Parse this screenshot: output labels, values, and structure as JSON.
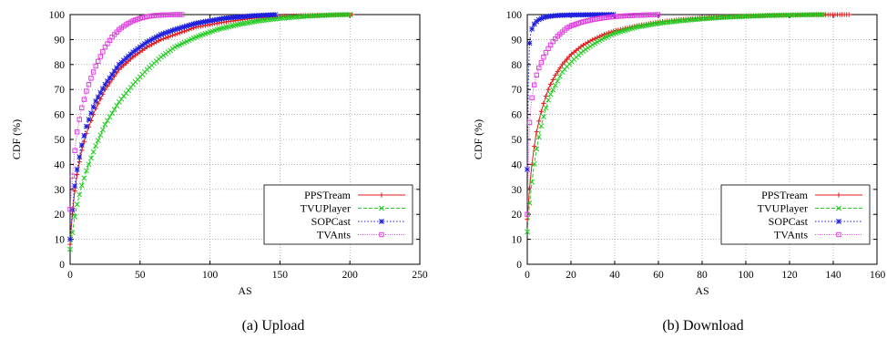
{
  "colors": {
    "PPSTream": "#e41a1c",
    "TVUPlayer": "#22cc22",
    "SOPCast": "#1f1fdd",
    "TVAnts": "#e040e0"
  },
  "chart_data": [
    {
      "type": "line",
      "caption": "(a) Upload",
      "xlabel": "AS",
      "ylabel": "CDF (%)",
      "xlim": [
        0,
        250
      ],
      "ylim": [
        0,
        100
      ],
      "xticks": [
        0,
        50,
        100,
        150,
        200,
        250
      ],
      "yticks": [
        0,
        10,
        20,
        30,
        40,
        50,
        60,
        70,
        80,
        90,
        100
      ],
      "grid": true,
      "legend_position": "bottom-right",
      "series": [
        {
          "name": "PPSTream",
          "marker": "plus",
          "x": [
            0,
            1,
            2,
            3,
            5,
            8,
            12,
            18,
            25,
            35,
            45,
            55,
            65,
            75,
            90,
            110,
            130,
            150,
            170,
            190,
            203
          ],
          "y": [
            8,
            16,
            22,
            28,
            36,
            45,
            53,
            62,
            70,
            78,
            83,
            87,
            90,
            92,
            95,
            97,
            98.5,
            99.3,
            99.7,
            99.9,
            100
          ]
        },
        {
          "name": "TVUPlayer",
          "marker": "x",
          "x": [
            0,
            1,
            2,
            3,
            5,
            8,
            12,
            18,
            25,
            35,
            45,
            55,
            65,
            75,
            90,
            105,
            120,
            135,
            150,
            170,
            190,
            200
          ],
          "y": [
            6,
            10,
            14,
            18,
            24,
            31,
            38,
            47,
            56,
            65,
            72,
            78,
            83,
            87,
            91,
            94,
            96,
            97.5,
            98.5,
            99.4,
            99.9,
            100
          ]
        },
        {
          "name": "SOPCast",
          "marker": "star",
          "x": [
            0,
            1,
            2,
            3,
            5,
            8,
            12,
            18,
            25,
            35,
            45,
            55,
            65,
            75,
            90,
            110,
            130,
            147
          ],
          "y": [
            10,
            17,
            24,
            30,
            38,
            47,
            56,
            65,
            72,
            80,
            85,
            89,
            92,
            94,
            96.5,
            98.5,
            99.5,
            100
          ]
        },
        {
          "name": "TVAnts",
          "marker": "square",
          "x": [
            0,
            1,
            2,
            3,
            5,
            8,
            12,
            18,
            25,
            30,
            35,
            40,
            45,
            50,
            55,
            60,
            65,
            70,
            75,
            80
          ],
          "y": [
            22,
            30,
            38,
            44,
            53,
            62,
            70,
            79,
            87,
            91,
            94,
            96,
            97.5,
            98.5,
            99.2,
            99.6,
            99.8,
            99.9,
            100,
            100
          ]
        }
      ]
    },
    {
      "type": "line",
      "caption": "(b) Download",
      "xlabel": "AS",
      "ylabel": "CDF (%)",
      "xlim": [
        0,
        160
      ],
      "ylim": [
        0,
        100
      ],
      "xticks": [
        0,
        20,
        40,
        60,
        80,
        100,
        120,
        140,
        160
      ],
      "yticks": [
        0,
        10,
        20,
        30,
        40,
        50,
        60,
        70,
        80,
        90,
        100
      ],
      "grid": true,
      "legend_position": "bottom-right",
      "series": [
        {
          "name": "PPSTream",
          "marker": "plus",
          "x": [
            0,
            1,
            2,
            3,
            4,
            6,
            8,
            10,
            13,
            16,
            20,
            25,
            30,
            35,
            40,
            50,
            60,
            70,
            80,
            90,
            100,
            110,
            120,
            135,
            148
          ],
          "y": [
            18,
            30,
            39,
            46,
            52,
            60,
            66,
            71,
            76,
            80,
            84,
            87.5,
            90,
            92,
            93.5,
            95.5,
            97,
            98,
            98.7,
            99.2,
            99.5,
            99.7,
            99.85,
            99.95,
            100
          ]
        },
        {
          "name": "TVUPlayer",
          "marker": "x",
          "x": [
            0,
            1,
            2,
            3,
            4,
            6,
            8,
            10,
            13,
            16,
            20,
            25,
            30,
            35,
            40,
            50,
            60,
            70,
            80,
            90,
            100,
            110,
            120,
            130,
            136
          ],
          "y": [
            13,
            24,
            32,
            39,
            45,
            54,
            61,
            67,
            72,
            77,
            81,
            85,
            88,
            90.5,
            92.5,
            95,
            96.5,
            97.5,
            98.3,
            98.9,
            99.3,
            99.6,
            99.8,
            99.95,
            100
          ]
        },
        {
          "name": "SOPCast",
          "marker": "star",
          "x": [
            0,
            0.5,
            1,
            1.5,
            2,
            3,
            4,
            5,
            6,
            8,
            10,
            12,
            15,
            20,
            25,
            30,
            35,
            40
          ],
          "y": [
            38,
            72,
            88,
            92,
            94,
            96,
            97,
            97.8,
            98.3,
            99,
            99.3,
            99.5,
            99.7,
            99.85,
            99.9,
            99.95,
            99.98,
            100
          ]
        },
        {
          "name": "TVAnts",
          "marker": "square",
          "x": [
            0,
            0.5,
            1,
            1.5,
            2,
            3,
            4,
            5,
            6,
            7,
            8,
            10,
            12,
            14,
            16,
            18,
            20,
            25,
            30,
            35,
            40,
            45,
            50,
            55,
            60
          ],
          "y": [
            20,
            40,
            56,
            62,
            66,
            71,
            75,
            78,
            80,
            82,
            84,
            87,
            89.5,
            91.5,
            93,
            94.5,
            95.5,
            97,
            98,
            98.7,
            99.2,
            99.5,
            99.7,
            99.85,
            100
          ]
        }
      ]
    }
  ]
}
